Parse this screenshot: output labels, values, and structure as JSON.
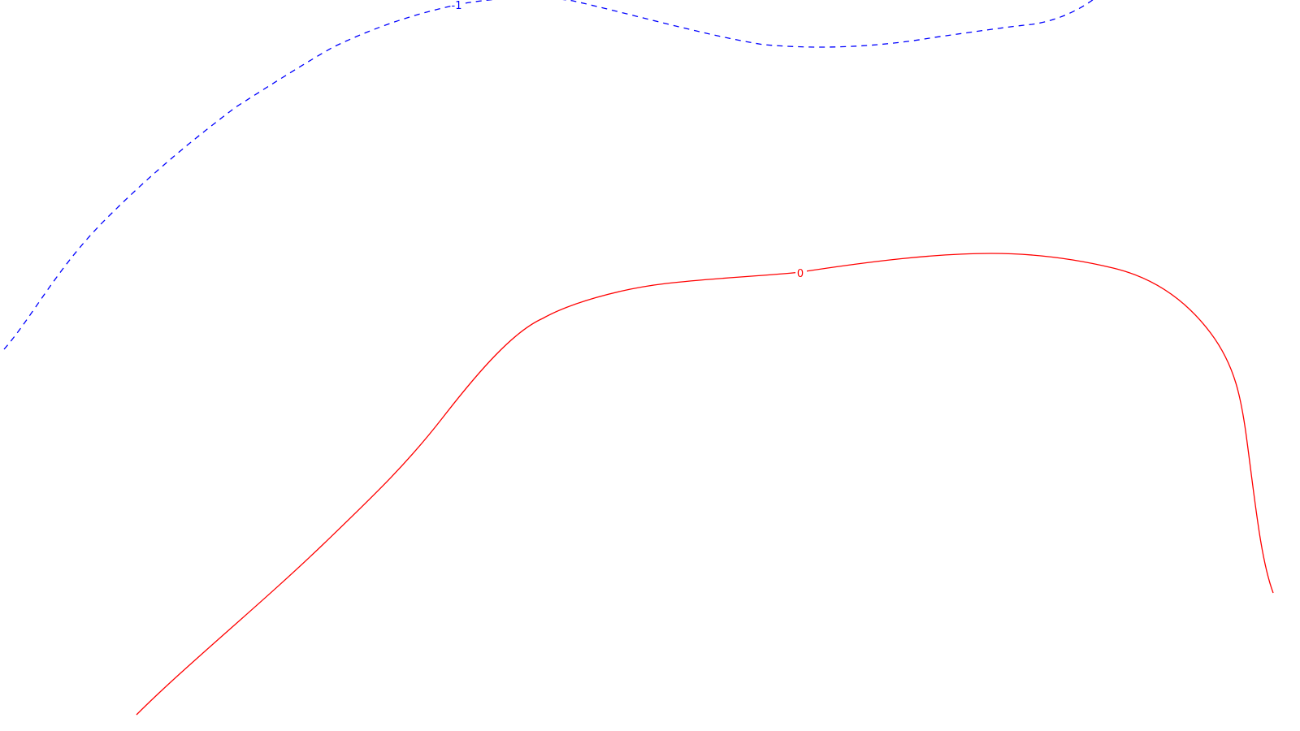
{
  "chart_data": {
    "type": "contour",
    "title": "",
    "xlabel": "",
    "ylabel": "",
    "grid": false,
    "contours": [
      {
        "level": "-1",
        "color": "#0000ff",
        "style": "dashed"
      },
      {
        "level": "0",
        "color": "#ff0000",
        "style": "solid"
      }
    ]
  }
}
